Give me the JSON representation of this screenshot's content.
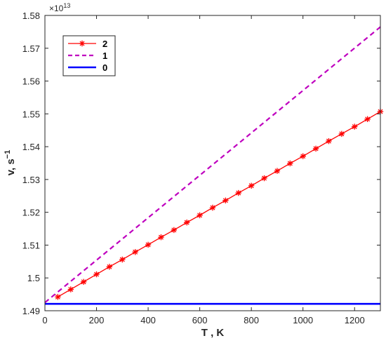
{
  "chart_data": {
    "type": "line",
    "xlabel": "T , K",
    "ylabel": "v, s",
    "ylabel_sup": "−1",
    "exponent_prefix": "×10",
    "exponent_power": "13",
    "xlim": [
      0,
      1300
    ],
    "ylim": [
      1.49,
      1.58
    ],
    "x_ticks": [
      "0",
      "200",
      "400",
      "600",
      "800",
      "1000",
      "1200"
    ],
    "y_ticks": [
      "1.49",
      "1.5",
      "1.51",
      "1.52",
      "1.53",
      "1.54",
      "1.55",
      "1.56",
      "1.57",
      "1.58"
    ],
    "grid": false,
    "legend_position": "top-left",
    "series": [
      {
        "name": "2",
        "color": "#ff0000",
        "line": "solid",
        "marker": "asterisk",
        "x": [
          50,
          100,
          150,
          200,
          250,
          300,
          350,
          400,
          450,
          500,
          550,
          600,
          650,
          700,
          750,
          800,
          850,
          900,
          950,
          1000,
          1050,
          1100,
          1150,
          1200,
          1250,
          1300
        ],
        "y": [
          1.4942,
          1.4965,
          1.4988,
          1.5011,
          1.5034,
          1.5056,
          1.5079,
          1.5101,
          1.5124,
          1.5146,
          1.5169,
          1.5191,
          1.5214,
          1.5236,
          1.5259,
          1.5281,
          1.5304,
          1.5326,
          1.5349,
          1.5371,
          1.5394,
          1.5417,
          1.5439,
          1.5461,
          1.5484,
          1.5507
        ]
      },
      {
        "name": "1",
        "color": "#bf00bf",
        "line": "dashed",
        "marker": "none",
        "x": [
          0,
          1300
        ],
        "y": [
          1.4925,
          1.5765
        ]
      },
      {
        "name": "0",
        "color": "#0000ff",
        "line": "solid",
        "marker": "none",
        "x": [
          0,
          1300
        ],
        "y": [
          1.4921,
          1.4921
        ]
      }
    ]
  }
}
